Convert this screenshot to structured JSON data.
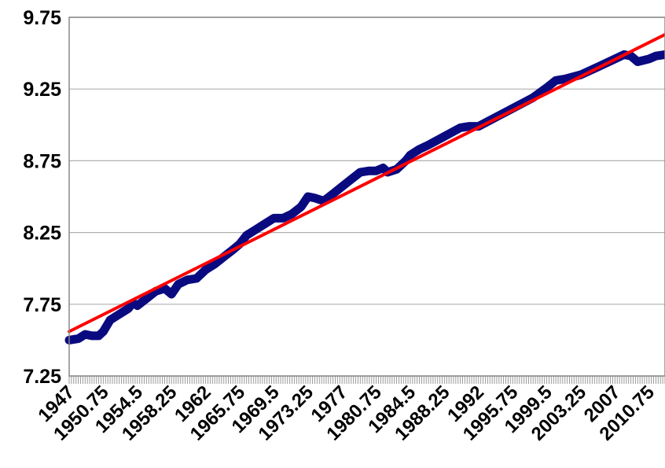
{
  "chart_data": {
    "type": "line",
    "title": "",
    "xlabel": "",
    "ylabel": "",
    "xlim": [
      1947,
      2012.5
    ],
    "ylim": [
      7.25,
      9.75
    ],
    "y_ticks": [
      7.25,
      7.75,
      8.25,
      8.75,
      9.25,
      9.75
    ],
    "y_tick_labels": [
      "7.25",
      "7.75",
      "8.25",
      "8.75",
      "9.25",
      "9.75"
    ],
    "x_tick_values": [
      1947,
      1950.75,
      1954.5,
      1958.25,
      1962,
      1965.75,
      1969.5,
      1973.25,
      1977,
      1980.75,
      1984.5,
      1988.25,
      1992,
      1995.75,
      1999.5,
      2003.25,
      2007,
      2010.75
    ],
    "x_tick_labels": [
      "1947",
      "1950.75",
      "1954.5",
      "1958.25",
      "1962",
      "1965.75",
      "1969.5",
      "1973.25",
      "1977",
      "1980.75",
      "1984.5",
      "1988.25",
      "1992",
      "1995.75",
      "1999.5",
      "2003.25",
      "2007",
      "2010.75"
    ],
    "horizontal_grid": true,
    "legend": "none",
    "series": [
      {
        "kind": "data",
        "color": "#0a0a80",
        "points": [
          [
            1947,
            7.5
          ],
          [
            1948,
            7.51
          ],
          [
            1948.75,
            7.54
          ],
          [
            1949.5,
            7.53
          ],
          [
            1950.25,
            7.53
          ],
          [
            1950.75,
            7.56
          ],
          [
            1951.5,
            7.64
          ],
          [
            1952.5,
            7.68
          ],
          [
            1953.5,
            7.72
          ],
          [
            1954,
            7.76
          ],
          [
            1954.5,
            7.74
          ],
          [
            1955.5,
            7.79
          ],
          [
            1956.5,
            7.84
          ],
          [
            1957.5,
            7.86
          ],
          [
            1958.25,
            7.82
          ],
          [
            1959,
            7.89
          ],
          [
            1960,
            7.92
          ],
          [
            1961,
            7.93
          ],
          [
            1962,
            7.99
          ],
          [
            1963,
            8.03
          ],
          [
            1964,
            8.08
          ],
          [
            1965,
            8.13
          ],
          [
            1965.75,
            8.17
          ],
          [
            1966.5,
            8.23
          ],
          [
            1967.5,
            8.27
          ],
          [
            1968.5,
            8.31
          ],
          [
            1969.5,
            8.35
          ],
          [
            1970.5,
            8.35
          ],
          [
            1971.5,
            8.38
          ],
          [
            1972.5,
            8.43
          ],
          [
            1973.25,
            8.5
          ],
          [
            1974,
            8.49
          ],
          [
            1975,
            8.47
          ],
          [
            1976,
            8.52
          ],
          [
            1977,
            8.57
          ],
          [
            1978,
            8.62
          ],
          [
            1979,
            8.67
          ],
          [
            1980,
            8.68
          ],
          [
            1980.75,
            8.68
          ],
          [
            1981.5,
            8.7
          ],
          [
            1982,
            8.67
          ],
          [
            1983,
            8.69
          ],
          [
            1984,
            8.75
          ],
          [
            1984.5,
            8.79
          ],
          [
            1985.5,
            8.83
          ],
          [
            1986.5,
            8.86
          ],
          [
            1988.25,
            8.92
          ],
          [
            1990,
            8.98
          ],
          [
            1991,
            8.99
          ],
          [
            1992,
            8.99
          ],
          [
            1993.5,
            9.04
          ],
          [
            1995,
            9.09
          ],
          [
            1996.5,
            9.14
          ],
          [
            1998,
            9.19
          ],
          [
            1999.5,
            9.26
          ],
          [
            2000.5,
            9.31
          ],
          [
            2001.5,
            9.32
          ],
          [
            2003.25,
            9.35
          ],
          [
            2005,
            9.4
          ],
          [
            2007,
            9.46
          ],
          [
            2008,
            9.49
          ],
          [
            2008.75,
            9.48
          ],
          [
            2009.5,
            9.44
          ],
          [
            2010.75,
            9.46
          ],
          [
            2011.5,
            9.48
          ],
          [
            2012.5,
            9.49
          ]
        ]
      },
      {
        "kind": "trend",
        "color": "#ff0000",
        "points": [
          [
            1947,
            7.56
          ],
          [
            2012.5,
            9.63
          ]
        ]
      }
    ]
  }
}
